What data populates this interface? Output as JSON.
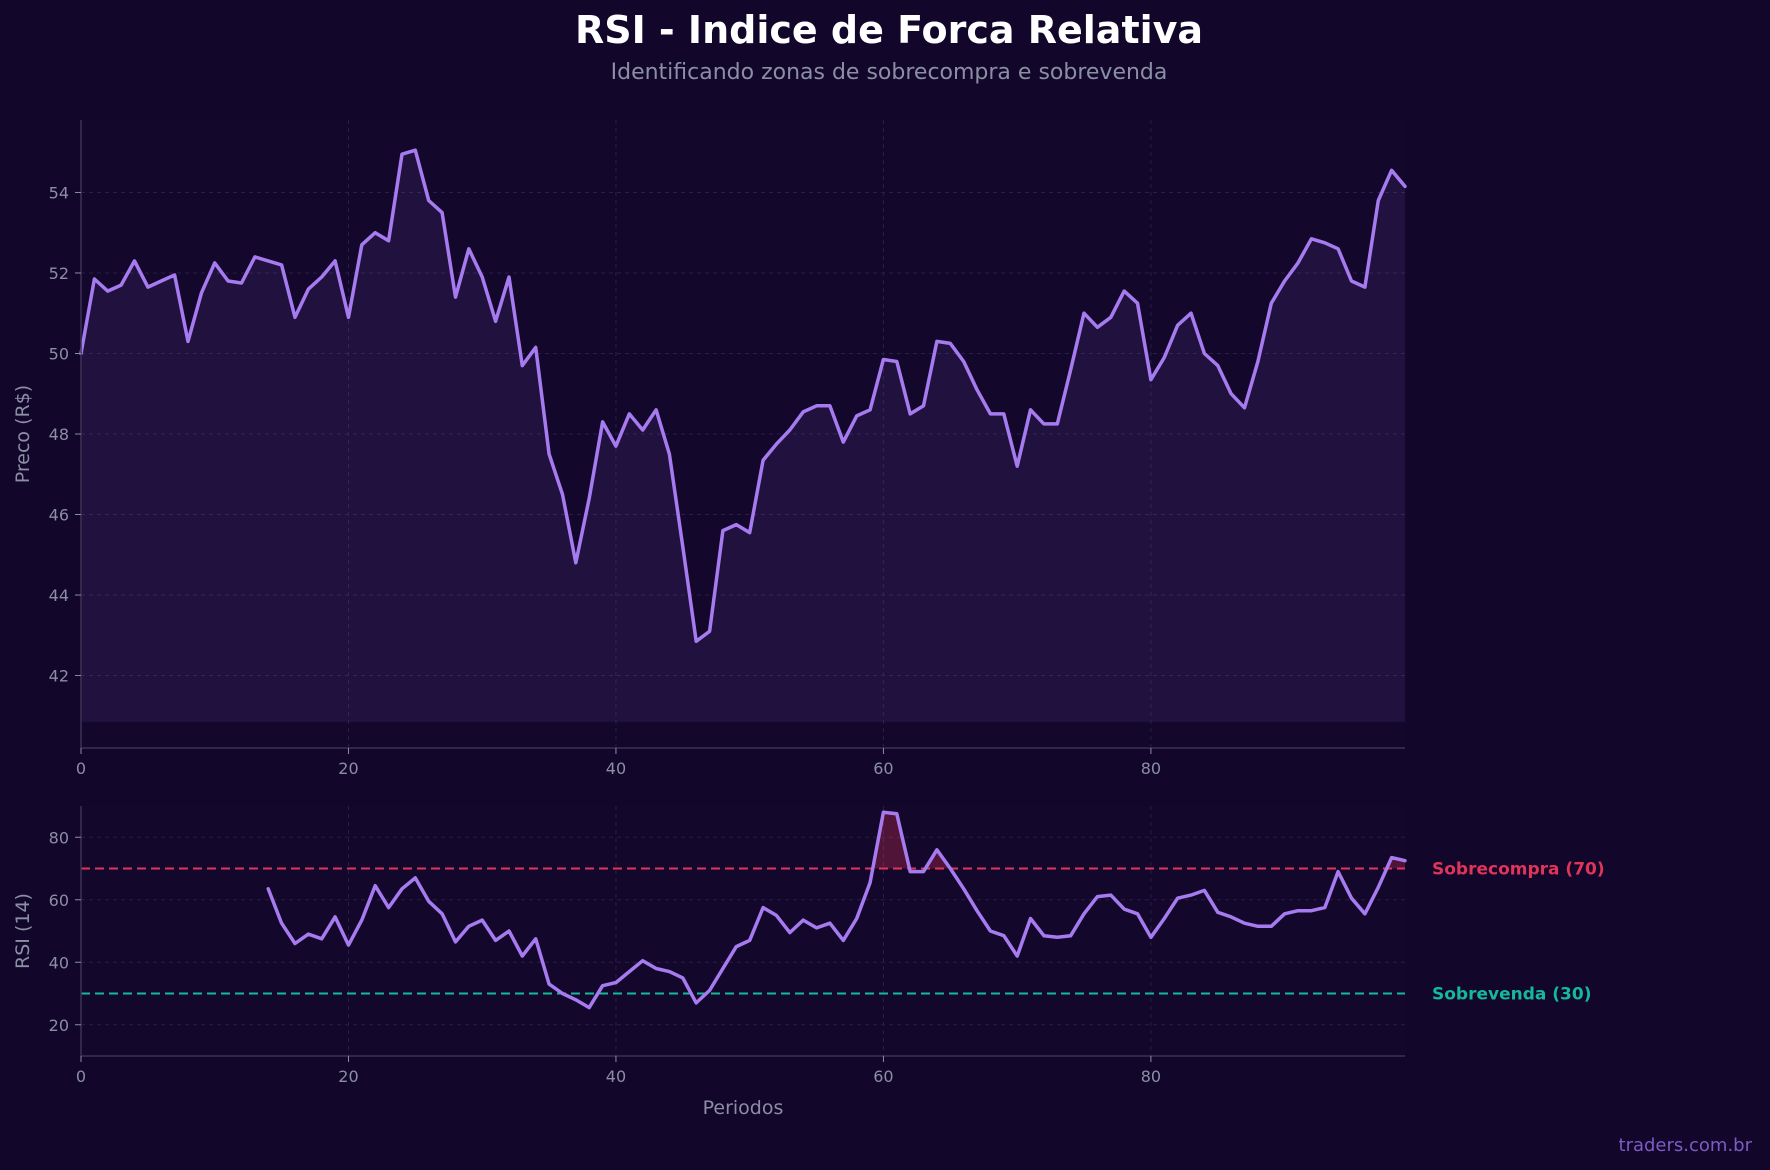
{
  "title": "RSI - Indice de Forca Relativa",
  "subtitle": "Identificando zonas de sobrecompra e sobrevenda",
  "watermark": "traders.com.br",
  "colors": {
    "background": "#12062a",
    "line": "#a77bf0",
    "overbought": "#e0345a",
    "oversold": "#14b89a",
    "text": "#8b8fa3"
  },
  "chart_data": [
    {
      "type": "area",
      "ylabel": "Preco (R$)",
      "xlim": [
        0,
        99
      ],
      "ylim": [
        40.2,
        55.8
      ],
      "xticks": [
        0,
        20,
        40,
        60,
        80
      ],
      "yticks": [
        42,
        44,
        46,
        48,
        50,
        52,
        54
      ],
      "fill_base": 40.85,
      "grid": true,
      "series": [
        {
          "x": [
            0,
            1,
            2,
            3,
            4,
            5,
            6,
            7,
            8,
            9,
            10,
            11,
            12,
            13,
            14,
            15,
            16,
            17,
            18,
            19,
            20,
            21,
            22,
            23,
            24,
            25,
            26,
            27,
            28,
            29,
            30,
            31,
            32,
            33,
            34,
            35,
            36,
            37,
            38,
            39,
            40,
            41,
            42,
            43,
            44,
            45,
            46,
            47,
            48,
            49,
            50,
            51,
            52,
            53,
            54,
            55,
            56,
            57,
            58,
            59,
            60,
            61,
            62,
            63,
            64,
            65,
            66,
            67,
            68,
            69,
            70,
            71,
            72,
            73,
            74,
            75,
            76,
            77,
            78,
            79,
            80,
            81,
            82,
            83,
            84,
            85,
            86,
            87,
            88,
            89,
            90,
            91,
            92,
            93,
            94,
            95,
            96,
            97,
            98,
            99
          ],
          "y": [
            50.0,
            51.85,
            51.55,
            51.7,
            52.3,
            51.65,
            51.8,
            51.95,
            50.3,
            51.5,
            52.25,
            51.8,
            51.75,
            52.4,
            52.3,
            52.2,
            50.9,
            51.6,
            51.9,
            52.3,
            50.9,
            52.7,
            53.0,
            52.8,
            54.95,
            55.05,
            53.8,
            53.5,
            51.4,
            52.6,
            51.9,
            50.8,
            51.9,
            49.7,
            50.15,
            47.5,
            46.5,
            44.8,
            46.4,
            48.3,
            47.7,
            48.5,
            48.1,
            48.6,
            47.5,
            45.2,
            42.85,
            43.1,
            45.6,
            45.75,
            45.55,
            47.35,
            47.75,
            48.1,
            48.55,
            48.7,
            48.7,
            47.8,
            48.45,
            48.6,
            49.85,
            49.8,
            48.5,
            48.7,
            50.3,
            50.25,
            49.8,
            49.1,
            48.5,
            48.5,
            47.2,
            48.6,
            48.25,
            48.25,
            49.6,
            51.0,
            50.65,
            50.9,
            51.55,
            51.25,
            49.35,
            49.9,
            50.7,
            51.0,
            50.0,
            49.7,
            49.0,
            48.65,
            49.8,
            51.25,
            51.8,
            52.25,
            52.85,
            52.75,
            52.6,
            51.8,
            51.65,
            53.8,
            54.55,
            54.15
          ]
        }
      ]
    },
    {
      "type": "line",
      "xlabel": "Periodos",
      "ylabel": "RSI (14)",
      "xlim": [
        0,
        99
      ],
      "ylim": [
        10,
        90
      ],
      "xticks": [
        0,
        20,
        40,
        60,
        80
      ],
      "yticks": [
        20,
        40,
        60,
        80
      ],
      "grid": true,
      "reference_lines": [
        {
          "y": 70,
          "label": "Sobrecompra (70)",
          "color": "#e0345a"
        },
        {
          "y": 30,
          "label": "Sobrevenda (30)",
          "color": "#14b89a"
        }
      ],
      "series": [
        {
          "x": [
            14,
            15,
            16,
            17,
            18,
            19,
            20,
            21,
            22,
            23,
            24,
            25,
            26,
            27,
            28,
            29,
            30,
            31,
            32,
            33,
            34,
            35,
            36,
            37,
            38,
            39,
            40,
            41,
            42,
            43,
            44,
            45,
            46,
            47,
            48,
            49,
            50,
            51,
            52,
            53,
            54,
            55,
            56,
            57,
            58,
            59,
            60,
            61,
            62,
            63,
            64,
            65,
            66,
            67,
            68,
            69,
            70,
            71,
            72,
            73,
            74,
            75,
            76,
            77,
            78,
            79,
            80,
            81,
            82,
            83,
            84,
            85,
            86,
            87,
            88,
            89,
            90,
            91,
            92,
            93,
            94,
            95,
            96,
            97,
            98,
            99
          ],
          "y": [
            63.5,
            52.5,
            46,
            49,
            47.5,
            54.5,
            45.5,
            53.5,
            64.5,
            57.5,
            63.5,
            67,
            59.5,
            55.5,
            46.5,
            51.5,
            53.5,
            47,
            50,
            42,
            47.5,
            33,
            30,
            28,
            25.5,
            32.5,
            33.5,
            37,
            40.5,
            38,
            37,
            35,
            27,
            31,
            38,
            45,
            47,
            57.5,
            55,
            49.5,
            53.5,
            51,
            52.5,
            47,
            54,
            65.5,
            88,
            87.5,
            69,
            69,
            76,
            70,
            63.5,
            56.5,
            50,
            48.5,
            42,
            54,
            48.5,
            48,
            48.5,
            55.5,
            61,
            61.5,
            57,
            55.5,
            48,
            54,
            60.5,
            61.5,
            63,
            56,
            54.5,
            52.5,
            51.5,
            51.5,
            55.5,
            56.5,
            56.5,
            57.5,
            69,
            60.5,
            55.5,
            64,
            73.5,
            72.5
          ]
        }
      ]
    }
  ]
}
